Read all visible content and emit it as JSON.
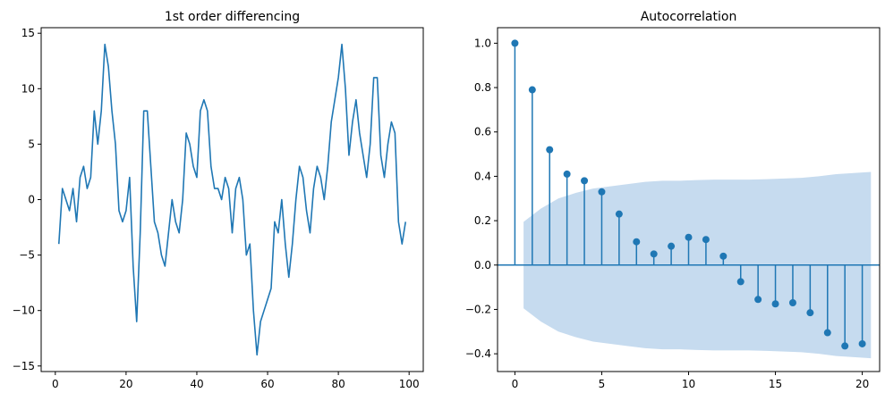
{
  "chart_data": [
    {
      "type": "line",
      "title": "1st order differencing",
      "xlabel": "",
      "ylabel": "",
      "xlim": [
        -4,
        104
      ],
      "ylim": [
        -15.5,
        15.5
      ],
      "xticks": [
        0,
        20,
        40,
        60,
        80,
        100
      ],
      "yticks": [
        -15,
        -10,
        -5,
        0,
        5,
        10,
        15
      ],
      "grid": false,
      "color": "#1f77b4",
      "x": [
        1,
        2,
        3,
        4,
        5,
        6,
        7,
        8,
        9,
        10,
        11,
        12,
        13,
        14,
        15,
        16,
        17,
        18,
        19,
        20,
        21,
        22,
        23,
        24,
        25,
        26,
        27,
        28,
        29,
        30,
        31,
        32,
        33,
        34,
        35,
        36,
        37,
        38,
        39,
        40,
        41,
        42,
        43,
        44,
        45,
        46,
        47,
        48,
        49,
        50,
        51,
        52,
        53,
        54,
        55,
        56,
        57,
        58,
        59,
        60,
        61,
        62,
        63,
        64,
        65,
        66,
        67,
        68,
        69,
        70,
        71,
        72,
        73,
        74,
        75,
        76,
        77,
        78,
        79,
        80,
        81,
        82,
        83,
        84,
        85,
        86,
        87,
        88,
        89,
        90,
        91,
        92,
        93,
        94,
        95,
        96,
        97,
        98,
        99
      ],
      "y": [
        -4,
        1,
        0,
        -1,
        1,
        -2,
        2,
        3,
        1,
        2,
        8,
        5,
        8,
        14,
        12,
        8,
        5,
        -1,
        -2,
        -1,
        2,
        -6,
        -11,
        -3,
        8,
        8,
        3,
        -2,
        -3,
        -5,
        -6,
        -3,
        0,
        -2,
        -3,
        0,
        6,
        5,
        3,
        2,
        8,
        9,
        8,
        3,
        1,
        1,
        0,
        2,
        1,
        -3,
        1,
        2,
        0,
        -5,
        -4,
        -10,
        -14,
        -11,
        -10,
        -9,
        -8,
        -2,
        -3,
        0,
        -4,
        -7,
        -4,
        0,
        3,
        2,
        -1,
        -3,
        1,
        3,
        2,
        0,
        3,
        7,
        9,
        11,
        14,
        10,
        4,
        7,
        9,
        6,
        4,
        2,
        5,
        11,
        11,
        4,
        2,
        5,
        7,
        6,
        -2,
        -4,
        -2
      ]
    },
    {
      "type": "stem",
      "title": "Autocorrelation",
      "xlabel": "",
      "ylabel": "",
      "xlim": [
        -1,
        21
      ],
      "ylim": [
        -0.48,
        1.07
      ],
      "xticks": [
        0,
        5,
        10,
        15,
        20
      ],
      "yticks": [
        -0.4,
        -0.2,
        0.0,
        0.2,
        0.4,
        0.6,
        0.8,
        1.0
      ],
      "grid": false,
      "color": "#1f77b4",
      "band_color": "#c6dbef",
      "lags": [
        0,
        1,
        2,
        3,
        4,
        5,
        6,
        7,
        8,
        9,
        10,
        11,
        12,
        13,
        14,
        15,
        16,
        17,
        18,
        19,
        20
      ],
      "values": [
        1.0,
        0.79,
        0.52,
        0.41,
        0.38,
        0.33,
        0.23,
        0.105,
        0.05,
        0.085,
        0.125,
        0.115,
        0.04,
        -0.075,
        -0.155,
        -0.175,
        -0.17,
        -0.215,
        -0.305,
        -0.365,
        -0.355
      ],
      "confidence_interval": [
        0,
        0.195,
        0.255,
        0.3,
        0.325,
        0.345,
        0.355,
        0.365,
        0.375,
        0.38,
        0.38,
        0.383,
        0.385,
        0.385,
        0.385,
        0.387,
        0.39,
        0.393,
        0.4,
        0.41,
        0.415,
        0.42
      ]
    }
  ]
}
